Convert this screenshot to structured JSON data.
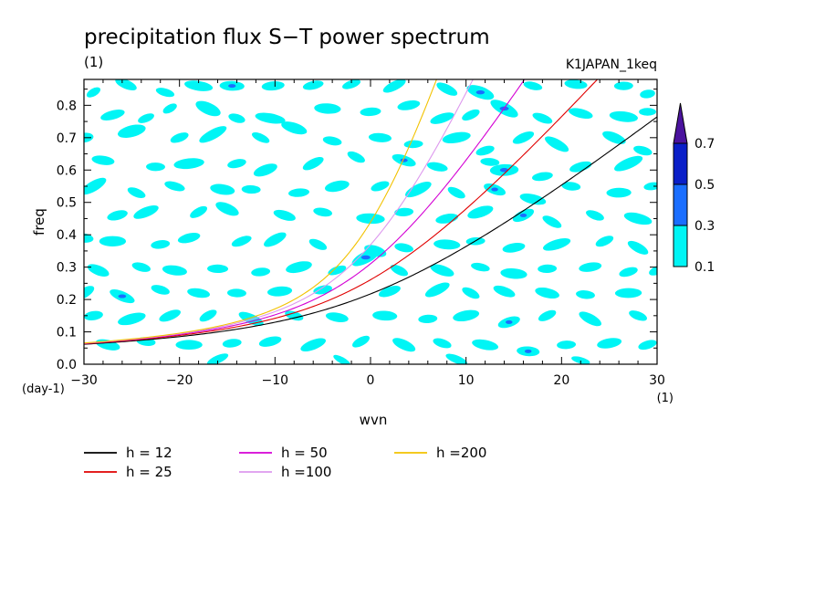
{
  "chart_data": {
    "type": "contour",
    "title": "precipitation flux S−T power spectrum",
    "units_label": "(1)",
    "run_label": "K1JAPAN_1keq",
    "xlabel": "wvn",
    "ylabel": "freq",
    "x_units": "(1)",
    "y_units": "(day-1)",
    "xlim": [
      -30,
      30
    ],
    "ylim": [
      0,
      0.88
    ],
    "x_ticks": [
      -30,
      -20,
      -10,
      0,
      10,
      20,
      30
    ],
    "x_tick_labels": [
      "−30",
      "−20",
      "−10",
      "0",
      "10",
      "20",
      "30"
    ],
    "y_ticks": [
      0,
      0.1,
      0.2,
      0.3,
      0.4,
      0.5,
      0.6,
      0.7,
      0.8
    ],
    "y_tick_labels": [
      "0.0",
      "0.1",
      "0.2",
      "0.3",
      "0.4",
      "0.5",
      "0.6",
      "0.7",
      "0.8"
    ],
    "colorbar": {
      "levels": [
        0.1,
        0.3,
        0.5,
        0.7
      ],
      "labels": [
        "0.1",
        "0.3",
        "0.5",
        "0.7"
      ],
      "colors": [
        "#00f5f5",
        "#1a6eff",
        "#0a1fc8",
        "#4b139e"
      ],
      "extend": "max"
    },
    "dispersion_curves": [
      {
        "name": "h = 12",
        "h": 12,
        "color": "#000000"
      },
      {
        "name": "h = 25",
        "h": 25,
        "color": "#e00000"
      },
      {
        "name": "h = 50",
        "h": 50,
        "color": "#d400d4"
      },
      {
        "name": "h =100",
        "h": 100,
        "color": "#dd99ee"
      },
      {
        "name": "h =200",
        "h": 200,
        "color": "#f2c200"
      }
    ],
    "legend_placement": "bottom",
    "blobs": [
      [
        -29.0,
        0.84,
        0.8,
        0.012,
        1
      ],
      [
        -25.6,
        0.865,
        1.2,
        0.014,
        1
      ],
      [
        -21.5,
        0.84,
        1.0,
        0.012,
        1
      ],
      [
        -18.0,
        0.86,
        1.5,
        0.015,
        1
      ],
      [
        -14.5,
        0.86,
        1.3,
        0.015,
        2
      ],
      [
        -10.2,
        0.86,
        1.2,
        0.014,
        1
      ],
      [
        -6.0,
        0.862,
        1.1,
        0.013,
        1
      ],
      [
        -2.0,
        0.865,
        1.0,
        0.012,
        1
      ],
      [
        2.5,
        0.86,
        1.3,
        0.014,
        1
      ],
      [
        8.0,
        0.85,
        1.2,
        0.014,
        1
      ],
      [
        11.5,
        0.84,
        1.5,
        0.018,
        2
      ],
      [
        17.0,
        0.86,
        1.0,
        0.012,
        1
      ],
      [
        21.5,
        0.865,
        1.2,
        0.014,
        1
      ],
      [
        26.5,
        0.86,
        1.0,
        0.013,
        1
      ],
      [
        29.0,
        0.835,
        0.8,
        0.013,
        1
      ],
      [
        -27.0,
        0.77,
        1.3,
        0.014,
        1
      ],
      [
        -23.5,
        0.76,
        0.9,
        0.012,
        1
      ],
      [
        -21.0,
        0.79,
        0.8,
        0.012,
        1
      ],
      [
        -17.0,
        0.79,
        1.4,
        0.018,
        1
      ],
      [
        -14.0,
        0.76,
        0.9,
        0.013,
        1
      ],
      [
        -10.5,
        0.76,
        1.6,
        0.015,
        1
      ],
      [
        -4.5,
        0.79,
        1.4,
        0.016,
        1
      ],
      [
        0.0,
        0.78,
        1.1,
        0.013,
        1
      ],
      [
        4.0,
        0.8,
        1.2,
        0.014,
        1
      ],
      [
        7.5,
        0.76,
        1.3,
        0.014,
        1
      ],
      [
        10.5,
        0.77,
        1.0,
        0.013,
        1
      ],
      [
        14.0,
        0.79,
        1.6,
        0.018,
        2
      ],
      [
        18.0,
        0.76,
        1.1,
        0.013,
        1
      ],
      [
        22.0,
        0.775,
        1.3,
        0.014,
        1
      ],
      [
        26.5,
        0.765,
        1.5,
        0.016,
        1
      ],
      [
        29.0,
        0.78,
        0.9,
        0.012,
        1
      ],
      [
        -30.0,
        0.7,
        1.0,
        0.015,
        1
      ],
      [
        -25.0,
        0.72,
        1.5,
        0.018,
        1
      ],
      [
        -20.0,
        0.7,
        1.0,
        0.013,
        1
      ],
      [
        -16.5,
        0.71,
        1.6,
        0.015,
        1
      ],
      [
        -11.5,
        0.7,
        1.0,
        0.012,
        1
      ],
      [
        -8.0,
        0.73,
        1.4,
        0.016,
        1
      ],
      [
        -4.0,
        0.69,
        1.0,
        0.013,
        1
      ],
      [
        1.0,
        0.7,
        1.2,
        0.014,
        1
      ],
      [
        4.5,
        0.68,
        1.0,
        0.012,
        1
      ],
      [
        9.0,
        0.7,
        1.5,
        0.016,
        1
      ],
      [
        12.0,
        0.66,
        1.0,
        0.013,
        1
      ],
      [
        16.0,
        0.7,
        1.2,
        0.014,
        1
      ],
      [
        19.5,
        0.68,
        1.4,
        0.015,
        1
      ],
      [
        25.5,
        0.7,
        1.3,
        0.015,
        1
      ],
      [
        28.5,
        0.66,
        1.0,
        0.013,
        1
      ],
      [
        -28.0,
        0.63,
        1.2,
        0.014,
        1
      ],
      [
        -22.5,
        0.61,
        1.0,
        0.013,
        1
      ],
      [
        -19.0,
        0.62,
        1.6,
        0.016,
        1
      ],
      [
        -14.0,
        0.62,
        1.0,
        0.013,
        1
      ],
      [
        -11.0,
        0.6,
        1.3,
        0.016,
        1
      ],
      [
        -6.0,
        0.62,
        1.2,
        0.014,
        1
      ],
      [
        -1.5,
        0.64,
        1.0,
        0.013,
        1
      ],
      [
        3.5,
        0.63,
        1.3,
        0.015,
        2
      ],
      [
        7.0,
        0.61,
        1.1,
        0.013,
        1
      ],
      [
        12.5,
        0.625,
        1.0,
        0.012,
        1
      ],
      [
        14.0,
        0.6,
        1.5,
        0.018,
        2
      ],
      [
        18.0,
        0.58,
        1.1,
        0.013,
        1
      ],
      [
        22.0,
        0.61,
        1.2,
        0.014,
        1
      ],
      [
        27.0,
        0.62,
        1.6,
        0.016,
        1
      ],
      [
        -29.0,
        0.55,
        1.5,
        0.016,
        1
      ],
      [
        -24.5,
        0.53,
        1.0,
        0.013,
        1
      ],
      [
        -20.5,
        0.55,
        1.1,
        0.013,
        1
      ],
      [
        -15.5,
        0.54,
        1.3,
        0.016,
        1
      ],
      [
        -12.5,
        0.54,
        1.0,
        0.013,
        1
      ],
      [
        -7.5,
        0.53,
        1.1,
        0.013,
        1
      ],
      [
        -3.5,
        0.55,
        1.3,
        0.016,
        1
      ],
      [
        1.0,
        0.55,
        1.0,
        0.013,
        1
      ],
      [
        5.0,
        0.54,
        1.5,
        0.016,
        1
      ],
      [
        9.0,
        0.53,
        1.0,
        0.013,
        1
      ],
      [
        13.0,
        0.54,
        1.2,
        0.015,
        2
      ],
      [
        17.0,
        0.51,
        1.4,
        0.015,
        1
      ],
      [
        21.0,
        0.55,
        1.0,
        0.013,
        1
      ],
      [
        26.0,
        0.53,
        1.3,
        0.015,
        1
      ],
      [
        29.5,
        0.55,
        0.9,
        0.012,
        1
      ],
      [
        -26.5,
        0.46,
        1.1,
        0.014,
        1
      ],
      [
        -23.5,
        0.47,
        1.4,
        0.015,
        1
      ],
      [
        -18.0,
        0.47,
        1.0,
        0.013,
        1
      ],
      [
        -15.0,
        0.48,
        1.3,
        0.016,
        1
      ],
      [
        -9.0,
        0.46,
        1.2,
        0.014,
        1
      ],
      [
        -5.0,
        0.47,
        1.0,
        0.013,
        1
      ],
      [
        0.0,
        0.45,
        1.5,
        0.016,
        1
      ],
      [
        3.5,
        0.47,
        1.0,
        0.013,
        1
      ],
      [
        8.0,
        0.45,
        1.2,
        0.014,
        1
      ],
      [
        11.5,
        0.47,
        1.4,
        0.016,
        1
      ],
      [
        16.0,
        0.46,
        1.2,
        0.015,
        2
      ],
      [
        19.0,
        0.44,
        1.1,
        0.013,
        1
      ],
      [
        23.5,
        0.46,
        1.0,
        0.013,
        1
      ],
      [
        28.0,
        0.45,
        1.5,
        0.016,
        1
      ],
      [
        -30.0,
        0.39,
        1.0,
        0.014,
        1
      ],
      [
        -27.0,
        0.38,
        1.4,
        0.016,
        1
      ],
      [
        -22.0,
        0.37,
        1.0,
        0.013,
        1
      ],
      [
        -19.0,
        0.39,
        1.2,
        0.014,
        1
      ],
      [
        -13.5,
        0.38,
        1.1,
        0.013,
        1
      ],
      [
        -10.0,
        0.385,
        1.3,
        0.015,
        1
      ],
      [
        -5.5,
        0.37,
        1.0,
        0.013,
        1
      ],
      [
        0.5,
        0.35,
        1.2,
        0.016,
        1
      ],
      [
        3.5,
        0.36,
        1.0,
        0.013,
        1
      ],
      [
        8.0,
        0.37,
        1.4,
        0.015,
        1
      ],
      [
        11.0,
        0.38,
        1.0,
        0.012,
        1
      ],
      [
        15.0,
        0.36,
        1.2,
        0.014,
        1
      ],
      [
        19.5,
        0.37,
        1.5,
        0.015,
        1
      ],
      [
        24.5,
        0.38,
        1.0,
        0.013,
        1
      ],
      [
        28.0,
        0.36,
        1.2,
        0.014,
        1
      ],
      [
        -28.5,
        0.29,
        1.2,
        0.015,
        1
      ],
      [
        -24.0,
        0.3,
        1.0,
        0.013,
        1
      ],
      [
        -20.5,
        0.29,
        1.3,
        0.015,
        1
      ],
      [
        -16.0,
        0.295,
        1.1,
        0.013,
        1
      ],
      [
        -11.5,
        0.285,
        1.0,
        0.013,
        1
      ],
      [
        -7.5,
        0.3,
        1.4,
        0.016,
        1
      ],
      [
        -3.5,
        0.29,
        1.0,
        0.012,
        1
      ],
      [
        -0.5,
        0.33,
        1.6,
        0.018,
        2
      ],
      [
        3.0,
        0.29,
        1.0,
        0.013,
        1
      ],
      [
        7.5,
        0.29,
        1.3,
        0.015,
        1
      ],
      [
        11.5,
        0.3,
        1.0,
        0.012,
        1
      ],
      [
        15.0,
        0.28,
        1.4,
        0.016,
        1
      ],
      [
        18.5,
        0.295,
        1.0,
        0.013,
        1
      ],
      [
        23.0,
        0.3,
        1.2,
        0.014,
        1
      ],
      [
        27.0,
        0.285,
        1.0,
        0.013,
        1
      ],
      [
        30.0,
        0.29,
        0.9,
        0.013,
        1
      ],
      [
        -30.0,
        0.22,
        1.2,
        0.015,
        1
      ],
      [
        -26.0,
        0.21,
        1.4,
        0.015,
        2
      ],
      [
        -22.0,
        0.23,
        1.0,
        0.013,
        1
      ],
      [
        -18.0,
        0.22,
        1.2,
        0.014,
        1
      ],
      [
        -14.0,
        0.22,
        1.0,
        0.013,
        1
      ],
      [
        -9.5,
        0.225,
        1.3,
        0.015,
        1
      ],
      [
        -5.0,
        0.23,
        1.0,
        0.013,
        1
      ],
      [
        2.0,
        0.225,
        1.2,
        0.014,
        1
      ],
      [
        7.0,
        0.23,
        1.4,
        0.015,
        1
      ],
      [
        10.5,
        0.22,
        1.0,
        0.013,
        1
      ],
      [
        14.0,
        0.225,
        1.2,
        0.014,
        1
      ],
      [
        18.5,
        0.22,
        1.3,
        0.015,
        1
      ],
      [
        22.5,
        0.215,
        1.0,
        0.013,
        1
      ],
      [
        27.0,
        0.22,
        1.4,
        0.015,
        1
      ],
      [
        -29.0,
        0.15,
        1.0,
        0.014,
        1
      ],
      [
        -25.0,
        0.14,
        1.5,
        0.016,
        1
      ],
      [
        -21.0,
        0.15,
        1.2,
        0.014,
        1
      ],
      [
        -17.0,
        0.15,
        1.0,
        0.013,
        1
      ],
      [
        -12.5,
        0.14,
        1.4,
        0.015,
        1
      ],
      [
        -8.0,
        0.15,
        1.0,
        0.013,
        1
      ],
      [
        -3.5,
        0.145,
        1.2,
        0.014,
        1
      ],
      [
        1.5,
        0.15,
        1.3,
        0.015,
        1
      ],
      [
        6.0,
        0.14,
        1.0,
        0.013,
        1
      ],
      [
        10.0,
        0.15,
        1.4,
        0.016,
        1
      ],
      [
        14.5,
        0.13,
        1.2,
        0.015,
        2
      ],
      [
        18.5,
        0.15,
        1.0,
        0.013,
        1
      ],
      [
        23.0,
        0.14,
        1.3,
        0.015,
        1
      ],
      [
        28.0,
        0.15,
        1.0,
        0.013,
        1
      ],
      [
        -27.5,
        0.06,
        1.3,
        0.015,
        1
      ],
      [
        -23.5,
        0.07,
        1.0,
        0.013,
        1
      ],
      [
        -19.0,
        0.06,
        1.4,
        0.015,
        1
      ],
      [
        -14.5,
        0.065,
        1.0,
        0.013,
        1
      ],
      [
        -10.5,
        0.07,
        1.2,
        0.014,
        1
      ],
      [
        -6.0,
        0.06,
        1.4,
        0.015,
        1
      ],
      [
        -1.0,
        0.07,
        1.0,
        0.013,
        1
      ],
      [
        3.5,
        0.06,
        1.3,
        0.015,
        1
      ],
      [
        7.5,
        0.065,
        1.0,
        0.013,
        1
      ],
      [
        12.0,
        0.06,
        1.4,
        0.015,
        1
      ],
      [
        16.5,
        0.04,
        1.2,
        0.015,
        2
      ],
      [
        20.5,
        0.06,
        1.0,
        0.013,
        1
      ],
      [
        25.0,
        0.065,
        1.3,
        0.015,
        1
      ],
      [
        29.0,
        0.06,
        1.0,
        0.013,
        1
      ],
      [
        -16.0,
        0.015,
        1.2,
        0.012,
        1
      ],
      [
        -3.0,
        0.012,
        1.0,
        0.01,
        1
      ],
      [
        9.0,
        0.015,
        1.2,
        0.012,
        1
      ],
      [
        22.0,
        0.012,
        1.0,
        0.01,
        1
      ]
    ]
  }
}
